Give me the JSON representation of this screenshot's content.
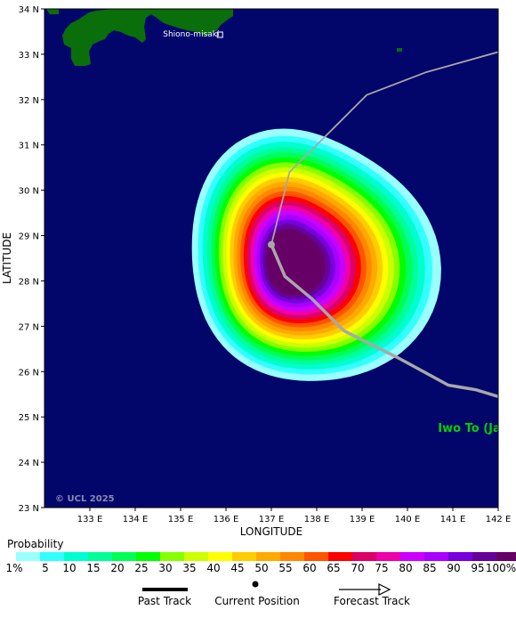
{
  "map": {
    "lon_min": 132,
    "lon_max": 142,
    "lat_min": 23,
    "lat_max": 34,
    "ocean_color": "#02066b",
    "land_color": "#0a6e0a",
    "xlabel": "LONGITUDE",
    "ylabel": "LATITUDE",
    "lon_ticks": [
      "133 E",
      "134 E",
      "135 E",
      "136 E",
      "137 E",
      "138 E",
      "139 E",
      "140 E",
      "141 E",
      "142 E"
    ],
    "lat_ticks": [
      "23 N",
      "24 N",
      "25 N",
      "26 N",
      "27 N",
      "28 N",
      "29 N",
      "30 N",
      "31 N",
      "32 N",
      "33 N",
      "34 N"
    ],
    "places": [
      {
        "name": "Shiono-misaki",
        "lon": 135.75,
        "lat": 33.45
      },
      {
        "name": "Iwo To (Japa",
        "lon": 141.3,
        "lat": 24.77
      }
    ],
    "copyright": "© UCL 2025"
  },
  "chart_data": {
    "type": "heatmap",
    "title": "Probability",
    "xlabel": "LONGITUDE",
    "ylabel": "LATITUDE",
    "xlim": [
      132,
      142
    ],
    "ylim": [
      23,
      34
    ],
    "probability_levels": [
      1,
      5,
      10,
      15,
      20,
      25,
      30,
      35,
      40,
      45,
      50,
      55,
      60,
      65,
      70,
      75,
      80,
      85,
      90,
      95,
      100
    ],
    "level_colors": [
      "#99ffff",
      "#33ffff",
      "#00ffd0",
      "#00ff99",
      "#00ff55",
      "#00ff00",
      "#88ff00",
      "#ccff00",
      "#ffff00",
      "#ffcc00",
      "#ffaa00",
      "#ff8800",
      "#ff5500",
      "#ff0000",
      "#dd0066",
      "#ee00aa",
      "#cc00ff",
      "#aa00ff",
      "#7700dd",
      "#66009b",
      "#660066"
    ],
    "peak_center": {
      "lon": 137.55,
      "lat": 28.4
    },
    "past_track": [],
    "current_position": {
      "lon": 137.0,
      "lat": 28.8
    },
    "forecast_track": [
      {
        "lon": 137.0,
        "lat": 28.8
      },
      {
        "lon": 137.3,
        "lat": 28.1
      },
      {
        "lon": 137.9,
        "lat": 27.6
      },
      {
        "lon": 138.6,
        "lat": 26.9
      },
      {
        "lon": 139.8,
        "lat": 26.3
      },
      {
        "lon": 140.9,
        "lat": 25.7
      },
      {
        "lon": 141.5,
        "lat": 25.6
      },
      {
        "lon": 142.0,
        "lat": 25.45
      }
    ],
    "northern_track": [
      {
        "lon": 137.0,
        "lat": 28.8
      },
      {
        "lon": 137.4,
        "lat": 30.4
      },
      {
        "lon": 138.3,
        "lat": 31.3
      },
      {
        "lon": 139.1,
        "lat": 32.1
      },
      {
        "lon": 140.4,
        "lat": 32.6
      },
      {
        "lon": 142.0,
        "lat": 33.05
      }
    ]
  },
  "legend": {
    "title": "Probability",
    "labels": [
      "1%",
      "5",
      "10",
      "15",
      "20",
      "25",
      "30",
      "35",
      "40",
      "45",
      "50",
      "55",
      "60",
      "65",
      "70",
      "75",
      "80",
      "85",
      "90",
      "95",
      "100%"
    ],
    "past_track": "Past Track",
    "current_position": "Current Position",
    "forecast_track": "Forecast Track"
  }
}
